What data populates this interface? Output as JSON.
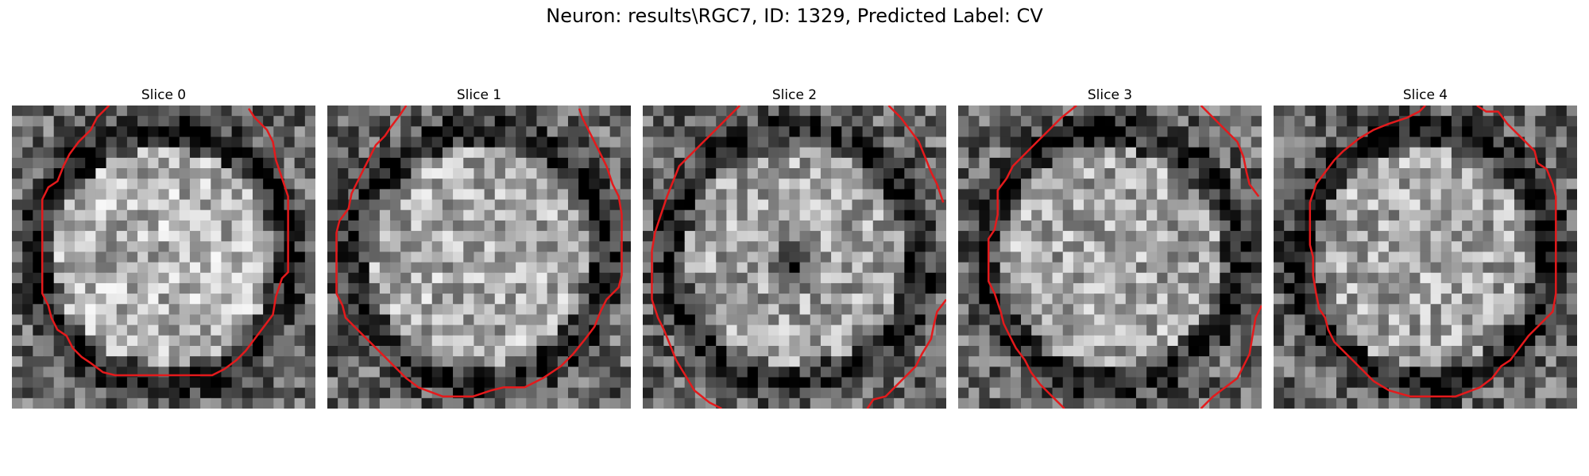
{
  "figure": {
    "title": "Neuron: results\\RGC7, ID: 1329, Predicted Label: CV",
    "contour_color": "#e41a1c",
    "colormap": "gray"
  },
  "panels": [
    {
      "title": "Slice 0",
      "seed": 11,
      "center_bias": 0.25,
      "ring_dark": 0.35,
      "contour": [
        [
          0.32,
          0.0
        ],
        [
          0.28,
          0.04
        ],
        [
          0.26,
          0.08
        ],
        [
          0.22,
          0.12
        ],
        [
          0.19,
          0.16
        ],
        [
          0.17,
          0.2
        ],
        [
          0.15,
          0.25
        ],
        [
          0.12,
          0.27
        ],
        [
          0.1,
          0.31
        ],
        [
          0.1,
          0.38
        ],
        [
          0.1,
          0.46
        ],
        [
          0.1,
          0.54
        ],
        [
          0.1,
          0.62
        ],
        [
          0.12,
          0.66
        ],
        [
          0.13,
          0.7
        ],
        [
          0.15,
          0.74
        ],
        [
          0.18,
          0.76
        ],
        [
          0.2,
          0.8
        ],
        [
          0.23,
          0.83
        ],
        [
          0.26,
          0.85
        ],
        [
          0.3,
          0.88
        ],
        [
          0.34,
          0.89
        ],
        [
          0.42,
          0.89
        ],
        [
          0.5,
          0.89
        ],
        [
          0.58,
          0.89
        ],
        [
          0.66,
          0.89
        ],
        [
          0.7,
          0.87
        ],
        [
          0.74,
          0.84
        ],
        [
          0.77,
          0.81
        ],
        [
          0.8,
          0.77
        ],
        [
          0.83,
          0.73
        ],
        [
          0.86,
          0.69
        ],
        [
          0.87,
          0.63
        ],
        [
          0.89,
          0.57
        ],
        [
          0.91,
          0.55
        ],
        [
          0.91,
          0.46
        ],
        [
          0.91,
          0.38
        ],
        [
          0.91,
          0.3
        ],
        [
          0.89,
          0.24
        ],
        [
          0.87,
          0.18
        ],
        [
          0.86,
          0.12
        ],
        [
          0.84,
          0.08
        ],
        [
          0.8,
          0.04
        ],
        [
          0.78,
          0.01
        ]
      ]
    },
    {
      "title": "Slice 1",
      "seed": 23,
      "center_bias": 0.22,
      "ring_dark": 0.3,
      "contour": [
        [
          0.26,
          0.0
        ],
        [
          0.24,
          0.03
        ],
        [
          0.21,
          0.07
        ],
        [
          0.19,
          0.1
        ],
        [
          0.16,
          0.13
        ],
        [
          0.14,
          0.17
        ],
        [
          0.12,
          0.21
        ],
        [
          0.1,
          0.25
        ],
        [
          0.08,
          0.29
        ],
        [
          0.07,
          0.34
        ],
        [
          0.04,
          0.38
        ],
        [
          0.03,
          0.42
        ],
        [
          0.03,
          0.52
        ],
        [
          0.03,
          0.62
        ],
        [
          0.05,
          0.66
        ],
        [
          0.06,
          0.7
        ],
        [
          0.1,
          0.74
        ],
        [
          0.14,
          0.78
        ],
        [
          0.18,
          0.82
        ],
        [
          0.22,
          0.86
        ],
        [
          0.26,
          0.9
        ],
        [
          0.3,
          0.93
        ],
        [
          0.38,
          0.96
        ],
        [
          0.48,
          0.96
        ],
        [
          0.54,
          0.94
        ],
        [
          0.58,
          0.93
        ],
        [
          0.65,
          0.93
        ],
        [
          0.71,
          0.9
        ],
        [
          0.77,
          0.86
        ],
        [
          0.81,
          0.82
        ],
        [
          0.85,
          0.77
        ],
        [
          0.88,
          0.73
        ],
        [
          0.9,
          0.68
        ],
        [
          0.92,
          0.64
        ],
        [
          0.96,
          0.6
        ],
        [
          0.97,
          0.56
        ],
        [
          0.97,
          0.46
        ],
        [
          0.97,
          0.36
        ],
        [
          0.96,
          0.3
        ],
        [
          0.94,
          0.26
        ],
        [
          0.92,
          0.2
        ],
        [
          0.9,
          0.16
        ],
        [
          0.88,
          0.12
        ],
        [
          0.86,
          0.08
        ],
        [
          0.84,
          0.04
        ],
        [
          0.83,
          0.01
        ]
      ]
    },
    {
      "title": "Slice 2",
      "seed": 37,
      "center_bias": 0.18,
      "ring_dark": 0.3,
      "center_dark": 0.6,
      "contour_a": [
        [
          0.32,
          0.0
        ],
        [
          0.28,
          0.04
        ],
        [
          0.24,
          0.08
        ],
        [
          0.2,
          0.12
        ],
        [
          0.16,
          0.16
        ],
        [
          0.12,
          0.2
        ],
        [
          0.1,
          0.25
        ],
        [
          0.08,
          0.3
        ],
        [
          0.06,
          0.36
        ],
        [
          0.04,
          0.42
        ],
        [
          0.03,
          0.48
        ],
        [
          0.03,
          0.56
        ],
        [
          0.03,
          0.64
        ],
        [
          0.05,
          0.7
        ],
        [
          0.07,
          0.74
        ],
        [
          0.09,
          0.79
        ],
        [
          0.11,
          0.84
        ],
        [
          0.14,
          0.89
        ],
        [
          0.17,
          0.94
        ],
        [
          0.22,
          0.98
        ],
        [
          0.26,
          1.0
        ]
      ],
      "contour_b": [
        [
          0.81,
          0.0
        ],
        [
          0.85,
          0.04
        ],
        [
          0.88,
          0.08
        ],
        [
          0.91,
          0.12
        ],
        [
          0.93,
          0.17
        ],
        [
          0.95,
          0.22
        ],
        [
          0.97,
          0.26
        ],
        [
          0.99,
          0.32
        ]
      ],
      "contour_c": [
        [
          1.0,
          0.64
        ],
        [
          0.97,
          0.68
        ],
        [
          0.96,
          0.72
        ],
        [
          0.95,
          0.77
        ],
        [
          0.92,
          0.82
        ],
        [
          0.9,
          0.86
        ],
        [
          0.87,
          0.89
        ],
        [
          0.84,
          0.92
        ],
        [
          0.8,
          0.96
        ],
        [
          0.76,
          0.97
        ],
        [
          0.74,
          1.0
        ]
      ]
    },
    {
      "title": "Slice 3",
      "seed": 51,
      "center_bias": 0.2,
      "ring_dark": 0.32,
      "contour_a": [
        [
          0.39,
          0.0
        ],
        [
          0.34,
          0.04
        ],
        [
          0.3,
          0.08
        ],
        [
          0.26,
          0.12
        ],
        [
          0.22,
          0.16
        ],
        [
          0.18,
          0.2
        ],
        [
          0.16,
          0.24
        ],
        [
          0.13,
          0.28
        ],
        [
          0.13,
          0.36
        ],
        [
          0.12,
          0.41
        ],
        [
          0.1,
          0.44
        ],
        [
          0.1,
          0.52
        ],
        [
          0.1,
          0.58
        ],
        [
          0.12,
          0.62
        ],
        [
          0.14,
          0.68
        ],
        [
          0.15,
          0.72
        ],
        [
          0.17,
          0.76
        ],
        [
          0.19,
          0.8
        ],
        [
          0.22,
          0.84
        ],
        [
          0.24,
          0.88
        ],
        [
          0.27,
          0.92
        ],
        [
          0.31,
          0.96
        ],
        [
          0.35,
          1.0
        ]
      ],
      "contour_b": [
        [
          0.8,
          0.0
        ],
        [
          0.84,
          0.04
        ],
        [
          0.88,
          0.08
        ],
        [
          0.92,
          0.12
        ],
        [
          0.94,
          0.17
        ],
        [
          0.95,
          0.22
        ],
        [
          0.96,
          0.26
        ],
        [
          0.99,
          0.3
        ]
      ],
      "contour_c": [
        [
          1.0,
          0.66
        ],
        [
          0.98,
          0.7
        ],
        [
          0.97,
          0.76
        ],
        [
          0.96,
          0.82
        ],
        [
          0.94,
          0.86
        ],
        [
          0.92,
          0.9
        ],
        [
          0.88,
          0.93
        ],
        [
          0.84,
          0.96
        ],
        [
          0.8,
          1.0
        ]
      ]
    },
    {
      "title": "Slice 4",
      "seed": 67,
      "center_bias": 0.2,
      "ring_dark": 0.38,
      "contour": [
        [
          0.67,
          0.0
        ],
        [
          0.7,
          0.02
        ],
        [
          0.74,
          0.02
        ],
        [
          0.77,
          0.06
        ],
        [
          0.8,
          0.09
        ],
        [
          0.83,
          0.12
        ],
        [
          0.86,
          0.15
        ],
        [
          0.87,
          0.19
        ],
        [
          0.9,
          0.21
        ],
        [
          0.92,
          0.26
        ],
        [
          0.93,
          0.3
        ],
        [
          0.93,
          0.38
        ],
        [
          0.93,
          0.46
        ],
        [
          0.93,
          0.54
        ],
        [
          0.93,
          0.62
        ],
        [
          0.92,
          0.68
        ],
        [
          0.88,
          0.72
        ],
        [
          0.84,
          0.76
        ],
        [
          0.81,
          0.8
        ],
        [
          0.78,
          0.84
        ],
        [
          0.75,
          0.86
        ],
        [
          0.72,
          0.9
        ],
        [
          0.68,
          0.93
        ],
        [
          0.6,
          0.96
        ],
        [
          0.5,
          0.96
        ],
        [
          0.45,
          0.96
        ],
        [
          0.38,
          0.94
        ],
        [
          0.33,
          0.91
        ],
        [
          0.28,
          0.86
        ],
        [
          0.24,
          0.82
        ],
        [
          0.2,
          0.78
        ],
        [
          0.18,
          0.74
        ],
        [
          0.17,
          0.7
        ],
        [
          0.15,
          0.67
        ],
        [
          0.14,
          0.62
        ],
        [
          0.13,
          0.56
        ],
        [
          0.13,
          0.5
        ],
        [
          0.12,
          0.46
        ],
        [
          0.12,
          0.4
        ],
        [
          0.12,
          0.32
        ],
        [
          0.14,
          0.26
        ],
        [
          0.17,
          0.22
        ],
        [
          0.2,
          0.18
        ],
        [
          0.23,
          0.15
        ],
        [
          0.28,
          0.11
        ],
        [
          0.33,
          0.08
        ],
        [
          0.38,
          0.06
        ],
        [
          0.44,
          0.04
        ],
        [
          0.48,
          0.02
        ],
        [
          0.5,
          0.0
        ]
      ]
    }
  ]
}
